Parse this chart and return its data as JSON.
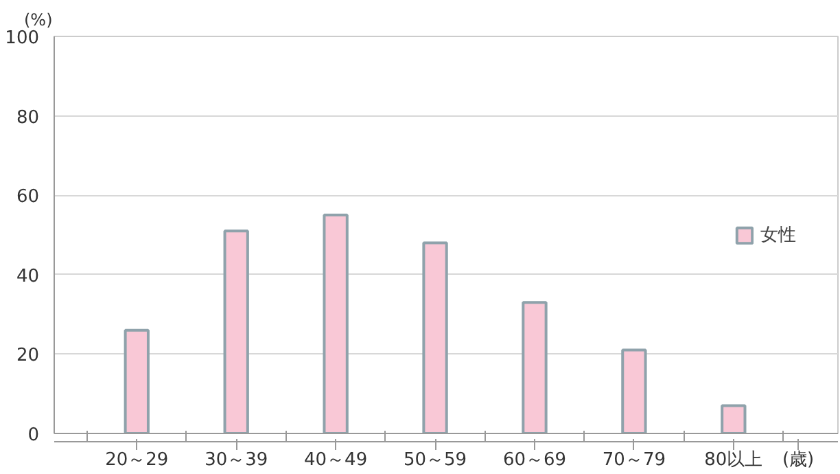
{
  "chart_data": {
    "type": "bar",
    "categories": [
      "20～29",
      "30～39",
      "40～49",
      "50～59",
      "60～69",
      "70～79",
      "80以上"
    ],
    "series": [
      {
        "name": "女性",
        "color": "#f9c8d6",
        "values": [
          26,
          51,
          55,
          48,
          33,
          21,
          7
        ]
      }
    ],
    "xlabel": "(歳)",
    "ylabel": "(%)",
    "ylim": [
      0,
      100
    ],
    "yticks": [
      0,
      20,
      40,
      60,
      80,
      100
    ],
    "grid": "y",
    "legend": "right"
  }
}
